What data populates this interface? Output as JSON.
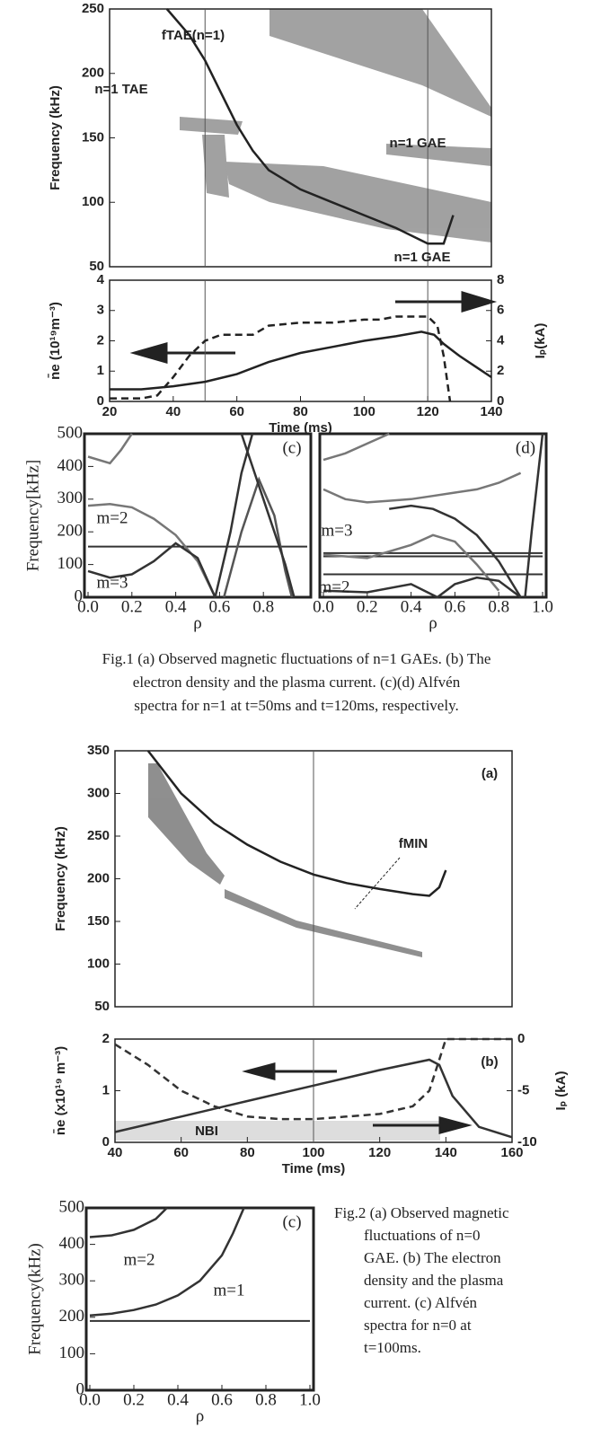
{
  "chart_data": [
    {
      "type": "line",
      "ylabel": "Frequency (kHz)",
      "xlim": [
        20,
        140
      ],
      "ylim": [
        50,
        250
      ],
      "yticks": [
        50,
        100,
        150,
        200,
        250
      ],
      "vlines": [
        50,
        120
      ],
      "annotations": [
        "fTAE(n=1)",
        "n=1 TAE",
        "n=1 GAE",
        "n=1 GAE"
      ],
      "series": [
        {
          "color": "#222",
          "x": [
            38,
            45,
            50,
            55,
            60,
            65,
            70,
            80,
            90,
            100,
            110,
            120,
            125,
            128
          ],
          "values": [
            250,
            230,
            210,
            185,
            160,
            140,
            125,
            110,
            100,
            90,
            80,
            68,
            68,
            90
          ]
        }
      ]
    },
    {
      "type": "line",
      "xlabel": "Time (ms)",
      "ylabel": "n̄e (10¹⁹m⁻³)",
      "y2label": "Iₚ(kA)",
      "xlim": [
        20,
        140
      ],
      "ylim": [
        0,
        4
      ],
      "y2lim": [
        0,
        8
      ],
      "xticks": [
        20,
        40,
        60,
        80,
        100,
        120,
        140
      ],
      "yticks": [
        0,
        1,
        2,
        3,
        4
      ],
      "y2ticks": [
        0,
        2,
        4,
        6,
        8
      ],
      "vlines": [
        50,
        120
      ],
      "series": [
        {
          "color": "#222",
          "dashed": true,
          "x": [
            20,
            30,
            35,
            40,
            45,
            50,
            55,
            60,
            65,
            70,
            80,
            90,
            100,
            105,
            110,
            115,
            120,
            123,
            125,
            127
          ],
          "values": [
            0.1,
            0.1,
            0.2,
            0.8,
            1.5,
            2.0,
            2.2,
            2.2,
            2.2,
            2.5,
            2.6,
            2.6,
            2.7,
            2.7,
            2.8,
            2.8,
            2.8,
            2.5,
            1.5,
            0
          ]
        },
        {
          "color": "#222",
          "axis": "y2",
          "x": [
            20,
            30,
            40,
            50,
            60,
            70,
            80,
            90,
            100,
            110,
            118,
            122,
            125,
            130,
            135,
            140
          ],
          "values": [
            0.8,
            0.8,
            1.0,
            1.3,
            1.8,
            2.6,
            3.2,
            3.6,
            4.0,
            4.3,
            4.6,
            4.4,
            3.8,
            3.0,
            2.3,
            1.6
          ]
        }
      ]
    },
    {
      "type": "line",
      "ylabel": "Frequency[kHz]",
      "xlabel": "ρ",
      "xlim": [
        0,
        1
      ],
      "ylim": [
        0,
        500
      ],
      "yticks": [
        0,
        100,
        200,
        300,
        400,
        500
      ],
      "xticks": [
        {
          "value": 0,
          "label": "0.0"
        },
        0.2,
        0.4,
        0.6,
        0.8
      ],
      "hlines": [
        155
      ],
      "annotations": [
        "(c)",
        "m=2",
        "m=3"
      ],
      "series": [
        {
          "color": "#777",
          "x": [
            0,
            0.1,
            0.2,
            0.3,
            0.4,
            0.5,
            0.58
          ],
          "values": [
            280,
            285,
            275,
            240,
            190,
            110,
            0
          ]
        },
        {
          "color": "#333",
          "x": [
            0,
            0.1,
            0.2,
            0.3,
            0.4,
            0.5,
            0.58
          ],
          "values": [
            80,
            60,
            70,
            110,
            165,
            120,
            0
          ]
        },
        {
          "color": "#333",
          "x": [
            0.58,
            0.65,
            0.7,
            0.75
          ],
          "values": [
            0,
            200,
            380,
            500
          ]
        },
        {
          "color": "#555",
          "x": [
            0.62,
            0.7,
            0.78,
            0.85,
            0.9,
            0.93
          ],
          "values": [
            0,
            200,
            360,
            250,
            80,
            0
          ]
        },
        {
          "color": "#777",
          "x": [
            0,
            0.1,
            0.15,
            0.2
          ],
          "values": [
            430,
            410,
            450,
            500
          ]
        },
        {
          "color": "#333",
          "x": [
            0.7,
            0.75,
            0.8,
            0.85,
            0.9,
            0.94
          ],
          "values": [
            500,
            400,
            300,
            200,
            100,
            0
          ]
        }
      ]
    },
    {
      "type": "line",
      "xlabel": "ρ",
      "xlim": [
        0,
        1
      ],
      "ylim": [
        0,
        500
      ],
      "xticks": [
        {
          "value": 0,
          "label": "0.0"
        },
        0.2,
        0.4,
        0.6,
        0.8,
        {
          "value": 1,
          "label": "1.0"
        }
      ],
      "hlines": [
        135,
        125,
        70
      ],
      "annotations": [
        "(d)",
        "m=3",
        "m=2"
      ],
      "series": [
        {
          "color": "#777",
          "x": [
            0,
            0.1,
            0.2,
            0.3,
            0.4,
            0.5,
            0.6,
            0.7,
            0.8,
            0.9
          ],
          "values": [
            330,
            300,
            290,
            295,
            300,
            310,
            320,
            330,
            350,
            380
          ]
        },
        {
          "color": "#333",
          "x": [
            0.3,
            0.4,
            0.5,
            0.6,
            0.7,
            0.8,
            0.9
          ],
          "values": [
            270,
            280,
            270,
            240,
            190,
            110,
            0
          ]
        },
        {
          "color": "#777",
          "x": [
            0,
            0.2,
            0.4,
            0.5,
            0.6,
            0.7,
            0.8
          ],
          "values": [
            130,
            120,
            160,
            190,
            170,
            100,
            20
          ]
        },
        {
          "color": "#333",
          "x": [
            0,
            0.2,
            0.4,
            0.52,
            0.6,
            0.7,
            0.8,
            0.9
          ],
          "values": [
            20,
            15,
            40,
            0,
            40,
            60,
            50,
            0
          ]
        },
        {
          "color": "#333",
          "x": [
            0.92,
            0.95,
            1.0
          ],
          "values": [
            0,
            200,
            500
          ]
        },
        {
          "color": "#777",
          "x": [
            0,
            0.1,
            0.2,
            0.3
          ],
          "values": [
            420,
            440,
            470,
            500
          ]
        }
      ]
    },
    {
      "type": "line",
      "ylabel": "Frequency (kHz)",
      "xlim": [
        40,
        160
      ],
      "ylim": [
        50,
        350
      ],
      "yticks": [
        50,
        100,
        150,
        200,
        250,
        300,
        350
      ],
      "vlines": [
        100
      ],
      "annotations": [
        "(a)",
        "fMIN"
      ],
      "series": [
        {
          "color": "#222",
          "x": [
            50,
            60,
            70,
            80,
            90,
            100,
            110,
            120,
            130,
            135,
            138,
            140
          ],
          "values": [
            350,
            300,
            265,
            240,
            220,
            205,
            195,
            188,
            182,
            180,
            190,
            210
          ]
        }
      ]
    },
    {
      "type": "line",
      "xlabel": "Time (ms)",
      "ylabel": "n̄e (x10¹⁹ m⁻³)",
      "y2label": "Iₚ (kA)",
      "xlim": [
        40,
        160
      ],
      "ylim": [
        0,
        2
      ],
      "y2lim": [
        -10,
        0
      ],
      "xticks": [
        40,
        60,
        80,
        100,
        120,
        140,
        160
      ],
      "yticks": [
        0,
        1,
        2
      ],
      "y2ticks": [
        -10,
        -5,
        0
      ],
      "vlines": [
        100
      ],
      "annotations": [
        "(b)",
        "NBI"
      ],
      "series": [
        {
          "color": "#333",
          "dashed": true,
          "x": [
            40,
            50,
            60,
            70,
            80,
            90,
            100,
            110,
            120,
            130,
            135,
            138,
            140,
            145,
            160
          ],
          "values": [
            1.9,
            1.5,
            1.0,
            0.7,
            0.5,
            0.45,
            0.45,
            0.5,
            0.55,
            0.7,
            1.0,
            1.6,
            2.0,
            2.0,
            2.0
          ]
        },
        {
          "color": "#333",
          "axis": "y2",
          "x": [
            40,
            60,
            80,
            100,
            120,
            135,
            138,
            142,
            150,
            160
          ],
          "values": [
            -9,
            -7.5,
            -6,
            -4.5,
            -3,
            -2,
            -2.5,
            -5.5,
            -8.5,
            -9.5
          ]
        }
      ]
    },
    {
      "type": "line",
      "ylabel": "Frequency(kHz)",
      "xlabel": "ρ",
      "xlim": [
        0,
        1
      ],
      "ylim": [
        0,
        500
      ],
      "yticks": [
        0,
        100,
        200,
        300,
        400,
        500
      ],
      "xticks": [
        {
          "value": 0,
          "label": "0.0"
        },
        0.2,
        0.4,
        0.6,
        0.8,
        {
          "value": 1,
          "label": "1.0"
        }
      ],
      "hlines": [
        190
      ],
      "annotations": [
        "(c)",
        "m=2",
        "m=1"
      ],
      "series": [
        {
          "color": "#333",
          "x": [
            0,
            0.1,
            0.2,
            0.3,
            0.35
          ],
          "values": [
            420,
            425,
            440,
            470,
            500
          ]
        },
        {
          "color": "#333",
          "x": [
            0,
            0.1,
            0.2,
            0.3,
            0.4,
            0.5,
            0.6,
            0.65,
            0.7
          ],
          "values": [
            205,
            210,
            220,
            235,
            260,
            300,
            370,
            430,
            500
          ]
        }
      ]
    }
  ],
  "captions": {
    "fig1": [
      "Fig.1 (a) Observed magnetic fluctuations of n=1 GAEs.  (b) The",
      "electron density and the plasma current. (c)(d) Alfvén",
      "spectra for n=1 at t=50ms and t=120ms, respectively."
    ],
    "fig2": [
      "Fig.2 (a) Observed magnetic",
      "fluctuations of n=0",
      "GAE. (b) The electron",
      "density and the plasma",
      "current. (c) Alfvén",
      "spectra for n=0 at",
      "t=100ms."
    ]
  }
}
